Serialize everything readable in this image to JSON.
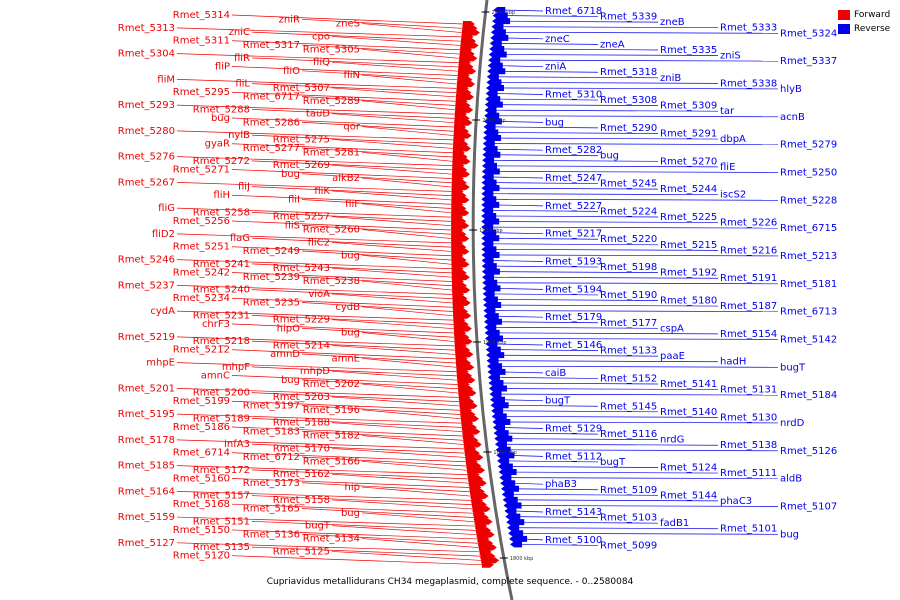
{
  "caption": "Cupriavidus metallidurans CH34 megaplasmid, complete sequence. - 0..2580084",
  "legend": {
    "forward": {
      "label": "Forward",
      "color": "#ee0000"
    },
    "reverse": {
      "label": "Reverse",
      "color": "#0000ee"
    }
  },
  "ticks": [
    "2050 kbp",
    "2000 kbp",
    "1950 kbp",
    "1900 kbp",
    "1850 kbp",
    "1800 kbp"
  ],
  "forward_labels": [
    "Rmet_5314",
    "zniR",
    "zneS",
    "Rmet_5313",
    "zniC",
    "cpo",
    "Rmet_5311",
    "Rmet_5317",
    "Rmet_5305",
    "Rmet_5304",
    "fliR",
    "fliQ",
    "fliP",
    "fliO",
    "fliN",
    "fliM",
    "fliL",
    "Rmet_5307",
    "Rmet_5295",
    "Rmet_6717",
    "Rmet_5289",
    "Rmet_5293",
    "Rmet_5288",
    "tauD",
    "bug",
    "Rmet_5286",
    "qor",
    "Rmet_5280",
    "nylB",
    "Rmet_5275",
    "gyaR",
    "Rmet_5277",
    "Rmet_5281",
    "Rmet_5276",
    "Rmet_5272",
    "Rmet_5269",
    "Rmet_5271",
    "bug",
    "alkB2",
    "Rmet_5267",
    "fliJ",
    "fliK",
    "fliH",
    "fliI",
    "fliF",
    "fliG",
    "Rmet_5258",
    "Rmet_5257",
    "Rmet_5256",
    "fliS",
    "Rmet_5260",
    "fliD2",
    "flaG",
    "fliC2",
    "Rmet_5251",
    "Rmet_5249",
    "bug",
    "Rmet_5246",
    "Rmet_5241",
    "Rmet_5243",
    "Rmet_5242",
    "Rmet_5239",
    "Rmet_5238",
    "Rmet_5237",
    "Rmet_5240",
    "vioA",
    "Rmet_5234",
    "Rmet_5235",
    "cydB",
    "cydA",
    "Rmet_5231",
    "Rmet_5229",
    "chrF3",
    "hipO",
    "bug",
    "Rmet_5219",
    "Rmet_5218",
    "Rmet_5214",
    "Rmet_5212",
    "amnD",
    "amnE",
    "mhpE",
    "mhpF",
    "mhpD",
    "amnC",
    "bug",
    "Rmet_5202",
    "Rmet_5201",
    "Rmet_5200",
    "Rmet_5203",
    "Rmet_5199",
    "Rmet_5197",
    "Rmet_5196",
    "Rmet_5195",
    "Rmet_5189",
    "Rmet_5188",
    "Rmet_5186",
    "Rmet_5183",
    "Rmet_5182",
    "Rmet_5178",
    "infA3",
    "Rmet_5170",
    "Rmet_6714",
    "Rmet_6712",
    "Rmet_5166",
    "Rmet_5185",
    "Rmet_5172",
    "Rmet_5162",
    "Rmet_5160",
    "Rmet_5173",
    "hip",
    "Rmet_5164",
    "Rmet_5157",
    "Rmet_5158",
    "Rmet_5168",
    "Rmet_5165",
    "bug",
    "Rmet_5159",
    "Rmet_5151",
    "bugT",
    "Rmet_5150",
    "Rmet_5136",
    "Rmet_5134",
    "Rmet_5127",
    "Rmet_5135",
    "Rmet_5125",
    "Rmet_5120"
  ],
  "reverse_labels": [
    "Rmet_6718",
    "Rmet_5339",
    "zneB",
    "Rmet_5333",
    "Rmet_5324",
    "zneC",
    "zneA",
    "Rmet_5335",
    "zniS",
    "Rmet_5337",
    "zniA",
    "Rmet_5318",
    "zniB",
    "Rmet_5338",
    "hlyB",
    "Rmet_5310",
    "Rmet_5308",
    "Rmet_5309",
    "tar",
    "acnB",
    "bug",
    "Rmet_5290",
    "Rmet_5291",
    "dbpA",
    "Rmet_5279",
    "Rmet_5282",
    "bug",
    "Rmet_5270",
    "fliE",
    "Rmet_5250",
    "Rmet_5247",
    "Rmet_5245",
    "Rmet_5244",
    "iscS2",
    "Rmet_5228",
    "Rmet_5227",
    "Rmet_5224",
    "Rmet_5225",
    "Rmet_5226",
    "Rmet_6715",
    "Rmet_5217",
    "Rmet_5220",
    "Rmet_5215",
    "Rmet_5216",
    "Rmet_5213",
    "Rmet_5193",
    "Rmet_5198",
    "Rmet_5192",
    "Rmet_5191",
    "Rmet_5181",
    "Rmet_5194",
    "Rmet_5190",
    "Rmet_5180",
    "Rmet_5187",
    "Rmet_6713",
    "Rmet_5179",
    "Rmet_5177",
    "cspA",
    "Rmet_5154",
    "Rmet_5142",
    "Rmet_5146",
    "Rmet_5133",
    "paaE",
    "hadH",
    "bugT",
    "caiB",
    "Rmet_5152",
    "Rmet_5141",
    "Rmet_5131",
    "Rmet_5184",
    "bugT",
    "Rmet_5145",
    "Rmet_5140",
    "Rmet_5130",
    "nrdD",
    "Rmet_5129",
    "Rmet_5116",
    "nrdG",
    "Rmet_5138",
    "Rmet_5126",
    "Rmet_5112",
    "bugT",
    "Rmet_5124",
    "Rmet_5111",
    "aldB",
    "phaB3",
    "Rmet_5109",
    "Rmet_5144",
    "phaC3",
    "Rmet_5107",
    "Rmet_5143",
    "Rmet_5103",
    "fadB1",
    "Rmet_5101",
    "bug",
    "Rmet_5100",
    "Rmet_5099"
  ]
}
